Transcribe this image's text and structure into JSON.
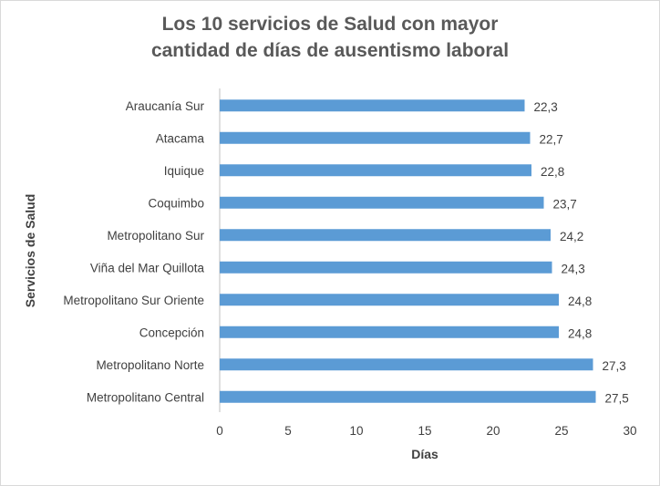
{
  "chart_data": {
    "type": "bar",
    "orientation": "horizontal",
    "title_lines": [
      "Los 10 servicios de Salud con mayor",
      "cantidad de días de ausentismo laboral"
    ],
    "xlabel": "Días",
    "ylabel": "Servicios de Salud",
    "xlim": [
      0,
      30
    ],
    "x_ticks": [
      "0",
      "5",
      "10",
      "15",
      "20",
      "25",
      "30"
    ],
    "grid": false,
    "legend": "none",
    "bar_color": "#5b9bd5",
    "categories": [
      "Araucanía Sur",
      "Atacama",
      "Iquique",
      "Coquimbo",
      "Metropolitano Sur",
      "Viña del Mar Quillota",
      "Metropolitano Sur Oriente",
      "Concepción",
      "Metropolitano Norte",
      "Metropolitano Central"
    ],
    "values": [
      22.3,
      22.7,
      22.8,
      23.7,
      24.2,
      24.3,
      24.8,
      24.8,
      27.3,
      27.5
    ],
    "value_labels": [
      "22,3",
      "22,7",
      "22,8",
      "23,7",
      "24,2",
      "24,3",
      "24,8",
      "24,8",
      "27,3",
      "27,5"
    ]
  }
}
